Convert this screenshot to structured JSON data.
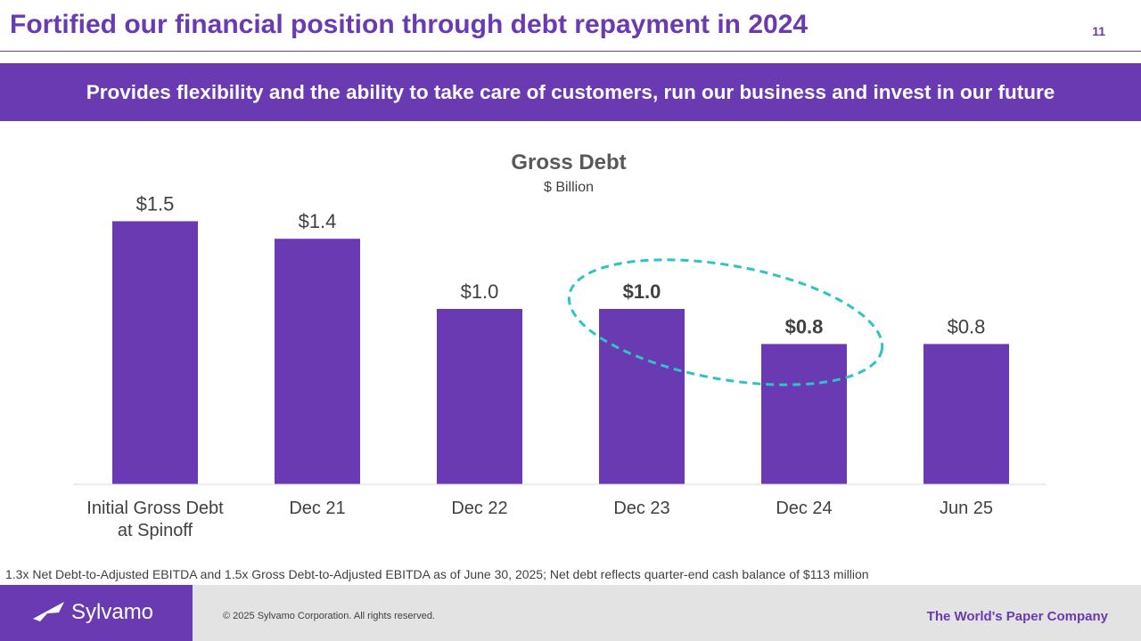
{
  "header": {
    "title": "Fortified our financial position through debt repayment in 2024",
    "page_number": "11"
  },
  "banner": {
    "text": "Provides flexibility and the ability to take care of customers, run our business and invest in our future"
  },
  "chart_data": {
    "type": "bar",
    "title": "Gross Debt",
    "subtitle": "$ Billion",
    "categories": [
      [
        "Initial Gross Debt",
        "at Spinoff"
      ],
      [
        "Dec 21"
      ],
      [
        "Dec 22"
      ],
      [
        "Dec 23"
      ],
      [
        "Dec 24"
      ],
      [
        "Jun 25"
      ]
    ],
    "values": [
      1.5,
      1.4,
      1.0,
      1.0,
      0.8,
      0.8
    ],
    "data_labels": [
      "$1.5",
      "$1.4",
      "$1.0",
      "$1.0",
      "$0.8",
      "$0.8"
    ],
    "bold_labels": [
      false,
      false,
      false,
      true,
      true,
      false
    ],
    "highlight": {
      "type": "dashed-ellipse",
      "categories": [
        "Dec 23",
        "Dec 24"
      ],
      "color": "#2ec4c4"
    },
    "bar_color": "#6a3ab2",
    "xlabel": "",
    "ylabel": "",
    "ylim": [
      0,
      1.6
    ]
  },
  "footnote": "1.3x Net Debt-to-Adjusted EBITDA and 1.5x Gross Debt-to-Adjusted EBITDA as of June 30, 2025; Net debt reflects quarter-end cash balance of $113 million",
  "footer": {
    "logo_text": "Sylvamo",
    "copyright": "© 2025 Sylvamo Corporation. All rights reserved.",
    "tagline": "The World's Paper Company"
  },
  "colors": {
    "brand_purple": "#6a3ab2",
    "highlight_teal": "#2ec4c4",
    "footer_gray": "#e3e3e3"
  }
}
